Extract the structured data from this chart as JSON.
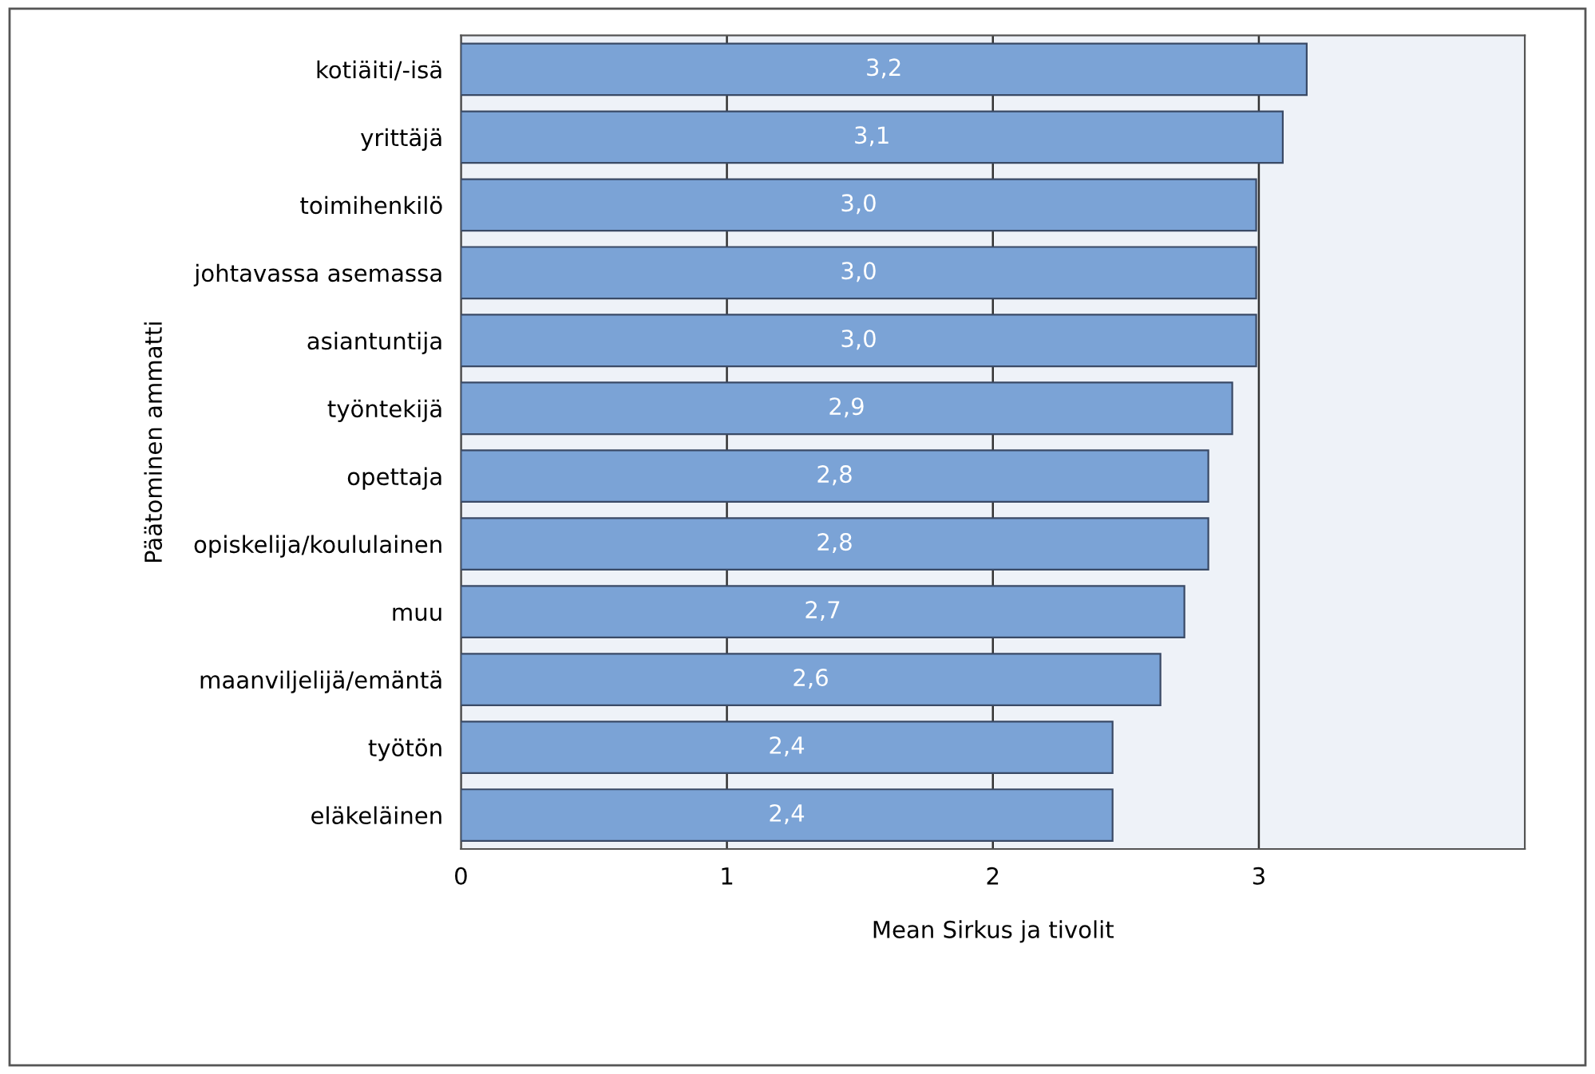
{
  "chart_data": {
    "type": "bar",
    "orientation": "horizontal",
    "xlabel": "Mean Sirkus ja tivolit",
    "ylabel": "Päätominen ammatti",
    "categories": [
      "kotiäiti/-isä",
      "yrittäjä",
      "toimihenkilö",
      "johtavassa asemassa",
      "asiantuntija",
      "työntekijä",
      "opettaja",
      "opiskelija/koululainen",
      "muu",
      "maanviljelijä/emäntä",
      "työtön",
      "eläkeläinen"
    ],
    "values": [
      3.18,
      3.09,
      2.99,
      2.99,
      2.99,
      2.9,
      2.81,
      2.81,
      2.72,
      2.63,
      2.45,
      2.45
    ],
    "value_labels": [
      "3,2",
      "3,1",
      "3,0",
      "3,0",
      "3,0",
      "2,9",
      "2,8",
      "2,8",
      "2,7",
      "2,6",
      "2,4",
      "2,4"
    ],
    "color": "#7ba3d6",
    "xlim": [
      0,
      4
    ],
    "xticks": [
      0,
      1,
      2,
      3
    ],
    "grid": "x",
    "legend": false
  }
}
